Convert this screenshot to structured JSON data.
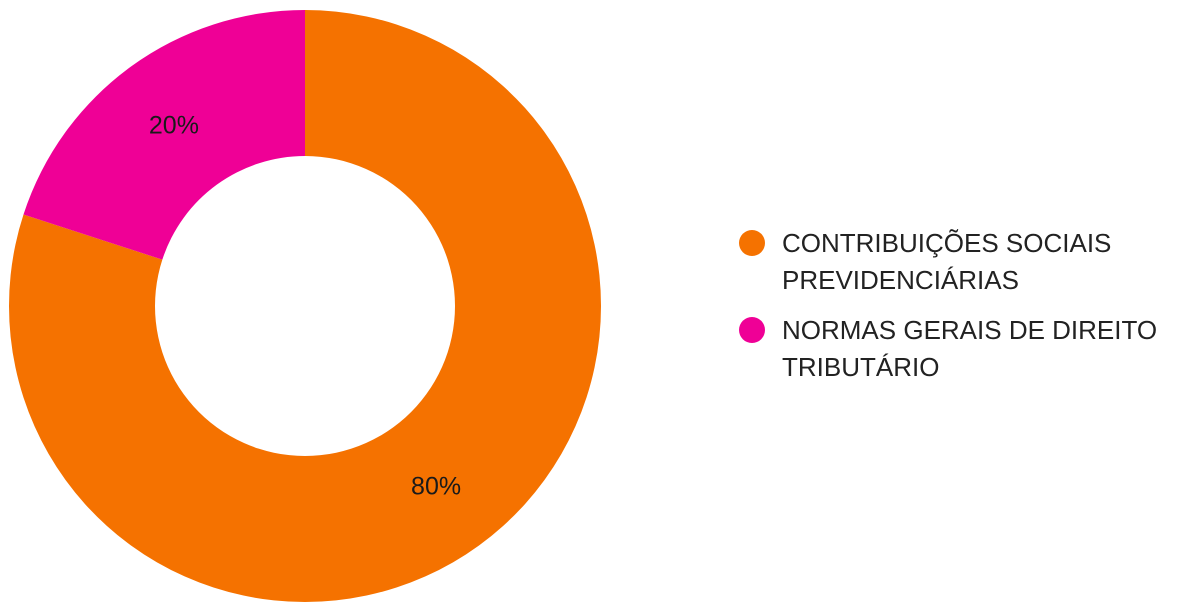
{
  "chart_data": {
    "type": "pie",
    "donut": true,
    "title": "",
    "slices": [
      {
        "label": "CONTRIBUIÇÕES SOCIAIS PREVIDENCIÁRIAS",
        "value": 80,
        "display": "80%",
        "color": "#F57200"
      },
      {
        "label": "NORMAS GERAIS DE DIREITO TRIBUTÁRIO",
        "value": 20,
        "display": "20%",
        "color": "#EF0096"
      }
    ],
    "legend": {
      "position": "right",
      "items": [
        {
          "lines": [
            "CONTRIBUIÇÕES SOCIAIS",
            "PREVIDENCIÁRIAS"
          ],
          "color": "#F57200"
        },
        {
          "lines": [
            "NORMAS GERAIS DE DIREITO",
            "TRIBUTÁRIO"
          ],
          "color": "#EF0096"
        }
      ]
    }
  }
}
